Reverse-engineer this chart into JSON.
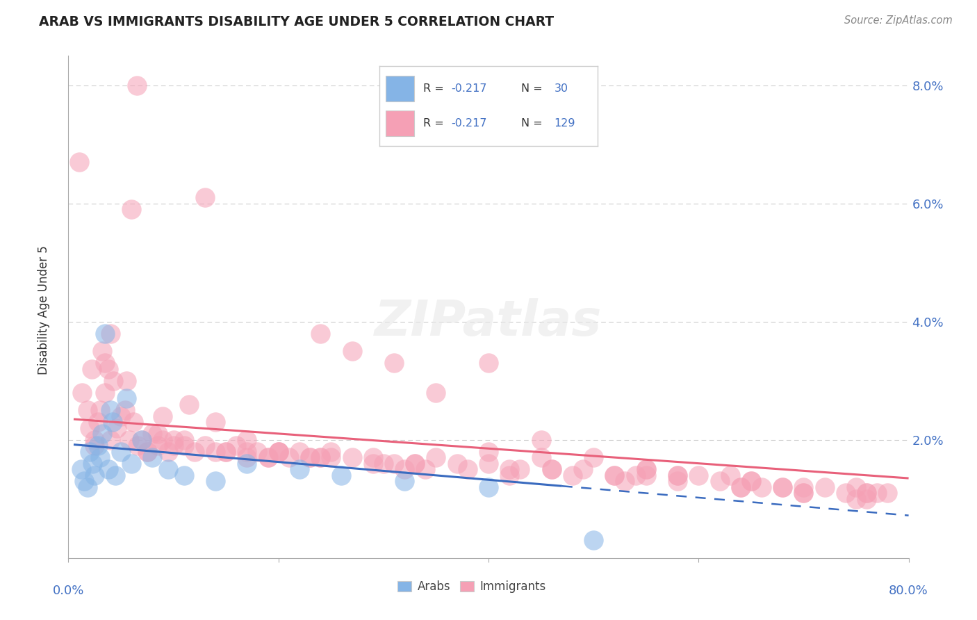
{
  "title": "ARAB VS IMMIGRANTS DISABILITY AGE UNDER 5 CORRELATION CHART",
  "source": "Source: ZipAtlas.com",
  "ylabel": "Disability Age Under 5",
  "xlim": [
    0.0,
    80.0
  ],
  "ylim": [
    0.0,
    8.5
  ],
  "yticks": [
    0.0,
    2.0,
    4.0,
    6.0,
    8.0
  ],
  "ytick_labels": [
    "",
    "2.0%",
    "4.0%",
    "6.0%",
    "8.0%"
  ],
  "arab_color": "#85b4e6",
  "imm_color": "#f5a0b5",
  "arab_line_color": "#3a6bbf",
  "imm_line_color": "#e8607a",
  "arab_line_x0": 0.5,
  "arab_line_x1": 80.0,
  "arab_line_y0": 1.92,
  "arab_line_y1": 0.72,
  "arab_solid_x1": 47.0,
  "imm_line_x0": 0.5,
  "imm_line_x1": 80.0,
  "imm_line_y0": 2.35,
  "imm_line_y1": 1.35,
  "arab_scatter_x": [
    1.2,
    1.5,
    1.8,
    2.0,
    2.3,
    2.5,
    2.8,
    3.0,
    3.2,
    3.5,
    3.8,
    4.0,
    4.2,
    4.5,
    5.0,
    5.5,
    6.0,
    7.0,
    8.0,
    9.5,
    11.0,
    14.0,
    17.0,
    22.0,
    26.0,
    32.0,
    40.0,
    50.0
  ],
  "arab_scatter_y": [
    1.5,
    1.3,
    1.2,
    1.8,
    1.6,
    1.4,
    1.9,
    1.7,
    2.1,
    3.8,
    1.5,
    2.5,
    2.3,
    1.4,
    1.8,
    2.7,
    1.6,
    2.0,
    1.7,
    1.5,
    1.4,
    1.3,
    1.6,
    1.5,
    1.4,
    1.3,
    1.2,
    0.3
  ],
  "imm_scatter_x": [
    1.0,
    1.3,
    1.8,
    2.0,
    2.2,
    2.5,
    2.8,
    3.0,
    3.2,
    3.5,
    3.8,
    4.0,
    4.3,
    4.6,
    5.0,
    5.4,
    5.8,
    6.2,
    6.6,
    7.0,
    7.5,
    8.0,
    8.5,
    9.0,
    9.5,
    10.0,
    11.0,
    12.0,
    13.0,
    14.0,
    15.0,
    16.0,
    17.0,
    18.0,
    19.0,
    20.0,
    21.0,
    22.0,
    23.0,
    24.0,
    25.0,
    27.0,
    29.0,
    31.0,
    33.0,
    35.0,
    37.0,
    40.0,
    43.0,
    46.0,
    49.0,
    52.0,
    55.0,
    58.0,
    62.0,
    65.0,
    68.0,
    72.0,
    75.0,
    78.0,
    3.5,
    5.5,
    7.5,
    9.0,
    11.0,
    14.0,
    17.0,
    20.0,
    23.0,
    27.0,
    31.0,
    35.0,
    40.0,
    45.0,
    50.0,
    55.0,
    60.0,
    65.0,
    70.0,
    75.0,
    2.5,
    4.0,
    6.0,
    8.5,
    11.5,
    15.0,
    19.0,
    24.0,
    29.0,
    34.0,
    40.0,
    46.0,
    52.0,
    58.0,
    64.0,
    70.0,
    76.0,
    33.0,
    45.0,
    55.0,
    63.0,
    70.0,
    76.0,
    25.0,
    38.0,
    48.0,
    58.0,
    68.0,
    77.0,
    20.0,
    30.0,
    42.0,
    54.0,
    66.0,
    76.0,
    10.0,
    17.0,
    24.0,
    32.0,
    42.0,
    53.0,
    64.0,
    74.0,
    6.5,
    13.0
  ],
  "imm_scatter_y": [
    6.7,
    2.8,
    2.5,
    2.2,
    3.2,
    2.0,
    2.3,
    2.5,
    3.5,
    2.8,
    3.2,
    2.0,
    3.0,
    2.2,
    2.4,
    2.5,
    2.0,
    2.3,
    1.9,
    2.0,
    1.8,
    2.1,
    1.9,
    2.0,
    1.8,
    2.0,
    1.9,
    1.8,
    1.9,
    1.8,
    1.8,
    1.9,
    1.7,
    1.8,
    1.7,
    1.8,
    1.7,
    1.8,
    1.7,
    1.7,
    1.8,
    1.7,
    1.7,
    1.6,
    1.6,
    1.7,
    1.6,
    1.6,
    1.5,
    1.5,
    1.5,
    1.4,
    1.4,
    1.4,
    1.3,
    1.3,
    1.2,
    1.2,
    1.2,
    1.1,
    3.3,
    3.0,
    1.8,
    2.4,
    2.0,
    2.3,
    2.0,
    1.8,
    1.7,
    3.5,
    3.3,
    2.8,
    1.8,
    2.0,
    1.7,
    1.5,
    1.4,
    1.3,
    1.1,
    1.0,
    1.9,
    3.8,
    5.9,
    2.1,
    2.6,
    1.8,
    1.7,
    3.8,
    1.6,
    1.5,
    3.3,
    1.5,
    1.4,
    1.4,
    1.2,
    1.1,
    1.0,
    1.6,
    1.7,
    1.5,
    1.4,
    1.2,
    1.1,
    1.7,
    1.5,
    1.4,
    1.3,
    1.2,
    1.1,
    1.8,
    1.6,
    1.5,
    1.4,
    1.2,
    1.1,
    1.9,
    1.8,
    1.7,
    1.5,
    1.4,
    1.3,
    1.2,
    1.1,
    8.0,
    6.1
  ]
}
